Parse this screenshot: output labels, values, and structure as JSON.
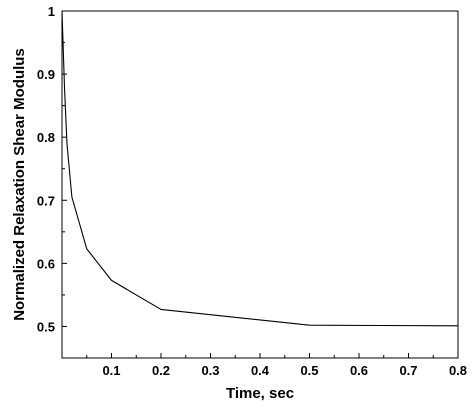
{
  "chart_data": {
    "type": "line",
    "title": "",
    "xlabel": "Time, sec",
    "ylabel": "Normalized Relaxation Shear Modulus",
    "xlim": [
      0,
      0.8
    ],
    "ylim": [
      0.45,
      1
    ],
    "x_ticks": [
      "0.1",
      "0.2",
      "0.3",
      "0.4",
      "0.5",
      "0.6",
      "0.7",
      "0.8"
    ],
    "y_ticks": [
      "0.5",
      "0.6",
      "0.7",
      "0.8",
      "0.9",
      "1"
    ],
    "grid": false,
    "legend": "none",
    "series": [
      {
        "color": "#000000",
        "x": [
          0,
          0.005,
          0.01,
          0.02,
          0.05,
          0.1,
          0.2,
          0.5,
          0.8
        ],
        "y": [
          1.0,
          0.88,
          0.79,
          0.705,
          0.623,
          0.573,
          0.527,
          0.502,
          0.501
        ]
      }
    ]
  }
}
